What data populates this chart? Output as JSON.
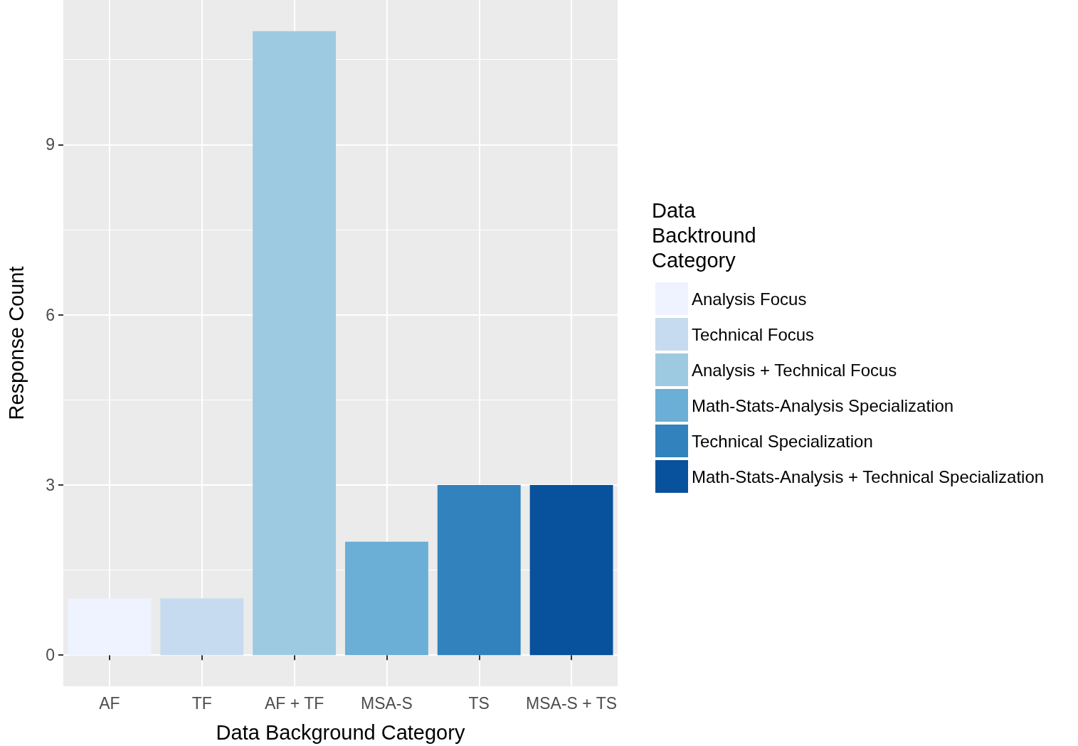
{
  "chart_data": {
    "type": "bar",
    "xlabel": "Data Background Category",
    "ylabel": "Response Count",
    "legend_title": "Data Backtround Category",
    "categories": [
      "AF",
      "TF",
      "AF + TF",
      "MSA-S",
      "TS",
      "MSA-S + TS"
    ],
    "series": [
      {
        "name": "Analysis Focus",
        "color": "#eff3ff",
        "values": [
          1,
          null,
          null,
          null,
          null,
          null
        ]
      },
      {
        "name": "Technical Focus",
        "color": "#c6dbef",
        "values": [
          null,
          1,
          null,
          null,
          null,
          null
        ]
      },
      {
        "name": "Analysis + Technical Focus",
        "color": "#9ecae1",
        "values": [
          null,
          null,
          11,
          null,
          null,
          null
        ]
      },
      {
        "name": "Math-Stats-Analysis Specialization",
        "color": "#6baed6",
        "values": [
          null,
          null,
          null,
          2,
          null,
          null
        ]
      },
      {
        "name": "Technical Specialization",
        "color": "#3182bd",
        "values": [
          null,
          null,
          null,
          null,
          3,
          null
        ]
      },
      {
        "name": "Math-Stats-Analysis + Technical Specialization",
        "color": "#08519c",
        "values": [
          null,
          null,
          null,
          null,
          null,
          3
        ]
      }
    ],
    "ylim": [
      -0.55,
      11.55
    ],
    "yticks": [
      0,
      3,
      6,
      9
    ],
    "grid": true,
    "legend": "right"
  }
}
